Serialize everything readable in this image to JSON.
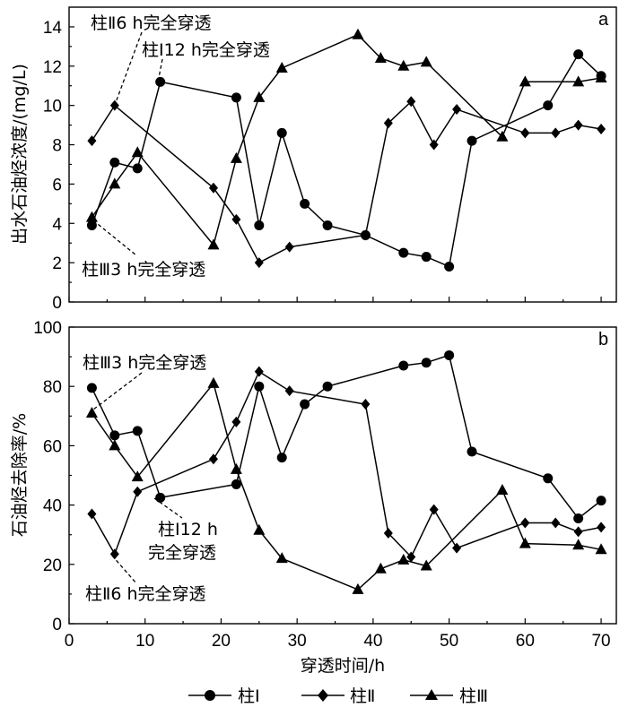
{
  "chart_data": [
    {
      "type": "line",
      "panel_label": "a",
      "ylabel": "出水石油烃浓度/(mg/L)",
      "xlabel": "",
      "ylim": [
        0,
        15
      ],
      "xlim": [
        0,
        72
      ],
      "yticks": [
        0,
        2,
        4,
        6,
        8,
        10,
        12,
        14
      ],
      "xticks": [
        0,
        10,
        20,
        30,
        40,
        50,
        60,
        70
      ],
      "grid": false,
      "series": [
        {
          "name": "柱Ⅰ",
          "marker": "circle",
          "x": [
            3,
            6,
            9,
            12,
            22,
            25,
            28,
            31,
            34,
            39,
            44,
            47,
            50,
            53,
            63,
            67,
            70
          ],
          "y": [
            3.9,
            7.1,
            6.8,
            11.2,
            10.4,
            3.9,
            8.6,
            5.0,
            3.9,
            3.4,
            2.5,
            2.3,
            1.8,
            8.2,
            10.0,
            12.6,
            11.5
          ]
        },
        {
          "name": "柱Ⅱ",
          "marker": "diamond",
          "x": [
            3,
            6,
            19,
            22,
            25,
            29,
            39,
            42,
            45,
            48,
            51,
            60,
            64,
            67,
            70
          ],
          "y": [
            8.2,
            10.0,
            5.8,
            4.2,
            2.0,
            2.8,
            3.4,
            9.1,
            10.2,
            8.0,
            9.8,
            8.6,
            8.6,
            9.0,
            8.8
          ]
        },
        {
          "name": "柱Ⅲ",
          "marker": "triangle",
          "x": [
            3,
            6,
            9,
            19,
            22,
            25,
            28,
            38,
            41,
            44,
            47,
            57,
            60,
            67,
            70
          ],
          "y": [
            4.3,
            6.0,
            7.6,
            2.9,
            7.3,
            10.4,
            11.9,
            13.6,
            12.4,
            12.0,
            12.2,
            8.4,
            11.2,
            11.2,
            11.4
          ]
        }
      ],
      "annotations": [
        {
          "text": "柱Ⅱ6 h完全穿透"
        },
        {
          "text": "柱Ⅰ12 h完全穿透"
        },
        {
          "text": "柱Ⅲ3 h完全穿透"
        }
      ]
    },
    {
      "type": "line",
      "panel_label": "b",
      "ylabel": "石油烃去除率/%",
      "xlabel": "穿透时间/h",
      "ylim": [
        0,
        100
      ],
      "xlim": [
        0,
        72
      ],
      "yticks": [
        0,
        20,
        40,
        60,
        80,
        100
      ],
      "xticks": [
        0,
        10,
        20,
        30,
        40,
        50,
        60,
        70
      ],
      "grid": false,
      "series": [
        {
          "name": "柱Ⅰ",
          "marker": "circle",
          "x": [
            3,
            6,
            9,
            12,
            22,
            25,
            28,
            31,
            34,
            44,
            47,
            50,
            53,
            63,
            67,
            70
          ],
          "y": [
            79.5,
            63.5,
            65.0,
            42.5,
            47.0,
            80.0,
            56.0,
            74.0,
            80.0,
            87.0,
            88.0,
            90.5,
            58.0,
            49.0,
            35.5,
            41.5
          ]
        },
        {
          "name": "柱Ⅱ",
          "marker": "diamond",
          "x": [
            3,
            6,
            9,
            19,
            22,
            25,
            29,
            39,
            42,
            45,
            48,
            51,
            60,
            64,
            67,
            70
          ],
          "y": [
            37.0,
            23.5,
            44.5,
            55.5,
            68.0,
            85.0,
            78.5,
            74.0,
            30.5,
            22.5,
            38.5,
            25.5,
            34.0,
            34.0,
            31.0,
            32.5
          ]
        },
        {
          "name": "柱Ⅲ",
          "marker": "triangle",
          "x": [
            3,
            6,
            9,
            19,
            22,
            25,
            28,
            38,
            41,
            44,
            47,
            57,
            60,
            67,
            70
          ],
          "y": [
            71.0,
            60.0,
            49.5,
            81.0,
            52.0,
            31.5,
            22.0,
            11.5,
            18.5,
            21.5,
            19.5,
            45.0,
            27.0,
            26.5,
            25.0
          ]
        }
      ],
      "annotations": [
        {
          "text": "柱Ⅲ3 h完全穿透"
        },
        {
          "text": "柱Ⅰ12 h"
        },
        {
          "text": "完全穿透"
        },
        {
          "text": "柱Ⅱ6 h完全穿透"
        }
      ]
    }
  ],
  "legend": {
    "placement": "bottom",
    "entries": [
      {
        "label": "柱Ⅰ",
        "marker": "circle"
      },
      {
        "label": "柱Ⅱ",
        "marker": "diamond"
      },
      {
        "label": "柱Ⅲ",
        "marker": "triangle"
      }
    ]
  }
}
